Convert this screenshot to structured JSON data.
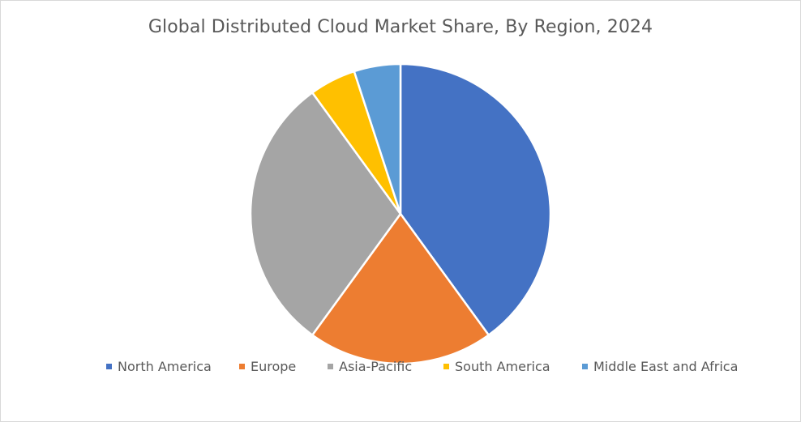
{
  "chart_data": {
    "type": "pie",
    "title": "Global Distributed Cloud Market Share, By Region, 2024",
    "categories": [
      "North America",
      "Europe",
      "Asia-Pacific",
      "South America",
      "Middle East and Africa"
    ],
    "values": [
      40,
      20,
      30,
      5,
      5
    ],
    "unit": "%",
    "colors": [
      "#4472C4",
      "#ED7D31",
      "#A5A5A5",
      "#FFC000",
      "#5B9BD5"
    ],
    "start_angle_deg": 0,
    "direction": "clockwise",
    "legend_position": "bottom",
    "data_labels": false
  }
}
